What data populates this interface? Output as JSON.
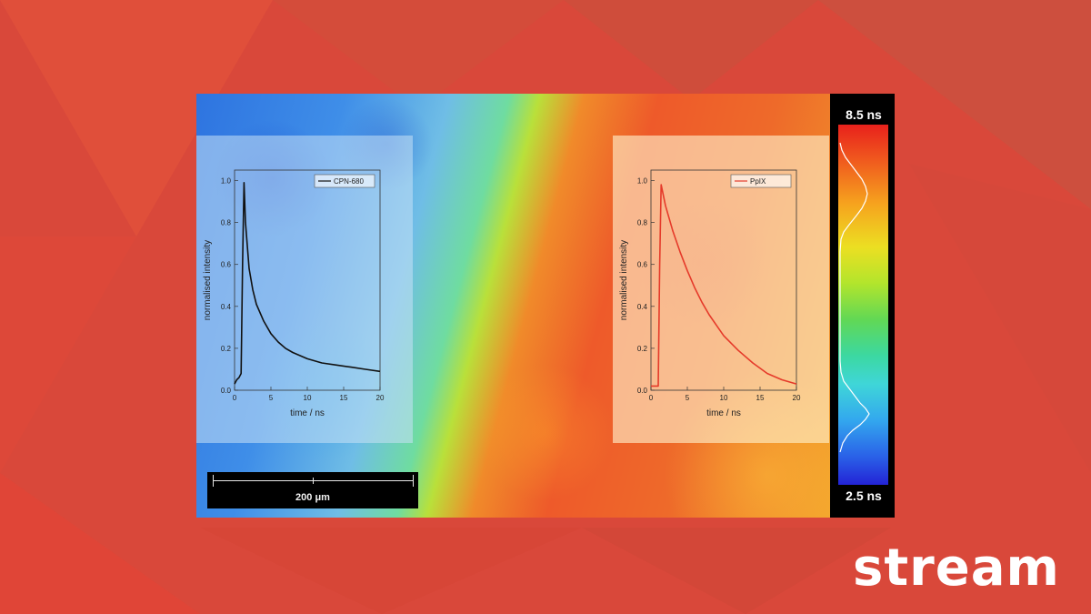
{
  "brand": {
    "logo_text": "stream"
  },
  "colors": {
    "background": "#d9483a",
    "curve_left": "#111111",
    "curve_right": "#e53a2a",
    "white": "#ffffff"
  },
  "scalebar": {
    "label": "200 μm"
  },
  "colorbar": {
    "max_label": "8.5 ns",
    "min_label": "2.5 ns"
  },
  "chart_data": [
    {
      "type": "line",
      "xlabel": "time / ns",
      "ylabel": "normalised intensity",
      "xlim": [
        0,
        20
      ],
      "ylim": [
        0,
        1.05
      ],
      "xticks": [
        "0",
        "5",
        "10",
        "15",
        "20"
      ],
      "yticks": [
        "0.0",
        "0.2",
        "0.4",
        "0.6",
        "0.8",
        "1.0"
      ],
      "legend": "top-right",
      "series": [
        {
          "name": "CPN-680",
          "color": "#111111",
          "x": [
            0,
            0.3,
            0.6,
            0.9,
            1.1,
            1.3,
            1.5,
            2,
            2.5,
            3,
            4,
            5,
            6,
            7,
            8,
            10,
            12,
            14,
            16,
            18,
            20
          ],
          "y": [
            0.03,
            0.05,
            0.06,
            0.08,
            0.6,
            0.99,
            0.8,
            0.58,
            0.48,
            0.41,
            0.33,
            0.27,
            0.23,
            0.2,
            0.18,
            0.15,
            0.13,
            0.12,
            0.11,
            0.1,
            0.09
          ]
        }
      ]
    },
    {
      "type": "line",
      "xlabel": "time / ns",
      "ylabel": "normalised intensity",
      "xlim": [
        0,
        20
      ],
      "ylim": [
        0,
        1.05
      ],
      "xticks": [
        "0",
        "5",
        "10",
        "15",
        "20"
      ],
      "yticks": [
        "0.0",
        "0.2",
        "0.4",
        "0.6",
        "0.8",
        "1.0"
      ],
      "legend": "top-right",
      "series": [
        {
          "name": "PpIX",
          "color": "#e53a2a",
          "x": [
            0,
            0.5,
            1.0,
            1.2,
            1.4,
            2,
            3,
            4,
            5,
            6,
            7,
            8,
            9,
            10,
            12,
            14,
            16,
            18,
            20
          ],
          "y": [
            0.02,
            0.02,
            0.02,
            0.6,
            0.98,
            0.88,
            0.76,
            0.66,
            0.57,
            0.49,
            0.42,
            0.36,
            0.31,
            0.26,
            0.19,
            0.13,
            0.08,
            0.05,
            0.03
          ]
        }
      ]
    }
  ]
}
